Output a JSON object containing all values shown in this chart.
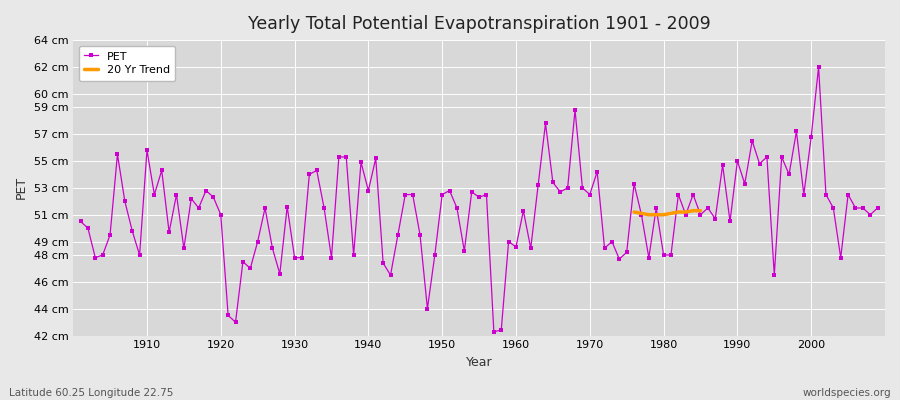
{
  "title": "Yearly Total Potential Evapotranspiration 1901 - 2009",
  "xlabel": "Year",
  "ylabel": "PET",
  "subtitle_left": "Latitude 60.25 Longitude 22.75",
  "subtitle_right": "worldspecies.org",
  "background_color": "#e8e8e8",
  "plot_bg_color": "#d8d8d8",
  "grid_color": "#ffffff",
  "pet_color": "#cc00cc",
  "trend_color": "#ff9900",
  "ylim_min": 42,
  "ylim_max": 64,
  "ytick_labels": [
    "42 cm",
    "44 cm",
    "46 cm",
    "48 cm",
    "49 cm",
    "51 cm",
    "53 cm",
    "55 cm",
    "57 cm",
    "59 cm",
    "60 cm",
    "62 cm",
    "64 cm"
  ],
  "ytick_values": [
    42,
    44,
    46,
    48,
    49,
    51,
    53,
    55,
    57,
    59,
    60,
    62,
    64
  ],
  "years": [
    1901,
    1902,
    1903,
    1904,
    1905,
    1906,
    1907,
    1908,
    1909,
    1910,
    1911,
    1912,
    1913,
    1914,
    1915,
    1916,
    1917,
    1918,
    1919,
    1920,
    1921,
    1922,
    1923,
    1924,
    1925,
    1926,
    1927,
    1928,
    1929,
    1930,
    1931,
    1932,
    1933,
    1934,
    1935,
    1936,
    1937,
    1938,
    1939,
    1940,
    1941,
    1942,
    1943,
    1944,
    1945,
    1946,
    1947,
    1948,
    1949,
    1950,
    1951,
    1952,
    1953,
    1954,
    1955,
    1956,
    1957,
    1958,
    1959,
    1960,
    1961,
    1962,
    1963,
    1964,
    1965,
    1966,
    1967,
    1968,
    1969,
    1970,
    1971,
    1972,
    1973,
    1974,
    1975,
    1976,
    1977,
    1978,
    1979,
    1980,
    1981,
    1982,
    1983,
    1984,
    1985,
    1986,
    1987,
    1988,
    1989,
    1990,
    1991,
    1992,
    1993,
    1994,
    1995,
    1996,
    1997,
    1998,
    1999,
    2000,
    2001,
    2002,
    2003,
    2004,
    2005,
    2006,
    2007,
    2008,
    2009
  ],
  "pet_values": [
    50.5,
    50.0,
    47.8,
    48.0,
    49.5,
    55.5,
    52.0,
    49.8,
    48.0,
    55.8,
    52.5,
    54.3,
    49.7,
    52.5,
    48.5,
    52.2,
    51.5,
    52.8,
    52.3,
    51.0,
    43.5,
    43.0,
    47.5,
    47.0,
    49.0,
    51.5,
    48.5,
    46.6,
    51.6,
    47.8,
    47.8,
    54.0,
    54.3,
    51.5,
    47.8,
    55.3,
    55.3,
    48.0,
    54.9,
    52.8,
    55.2,
    47.4,
    46.5,
    49.5,
    52.5,
    52.5,
    49.5,
    44.0,
    48.0,
    52.5,
    52.8,
    51.5,
    48.3,
    52.7,
    52.3,
    52.5,
    42.3,
    42.4,
    49.0,
    48.6,
    51.3,
    48.5,
    53.2,
    57.8,
    53.4,
    52.7,
    53.0,
    58.8,
    53.0,
    52.5,
    54.2,
    48.5,
    49.0,
    47.7,
    48.2,
    53.3,
    51.0,
    47.8,
    51.5,
    48.0,
    48.0,
    52.5,
    51.0,
    52.5,
    51.0,
    51.5,
    50.7,
    54.7,
    50.5,
    55.0,
    53.3,
    56.5,
    54.8,
    55.3,
    46.5,
    55.3,
    54.0,
    57.2,
    52.5,
    56.8,
    62.0,
    52.5,
    51.5,
    47.8,
    52.5,
    51.5,
    51.5,
    51.0,
    51.5
  ],
  "trend_years": [
    1976,
    1977,
    1978,
    1979,
    1980,
    1981,
    1982,
    1983,
    1984,
    1985
  ],
  "trend_values": [
    51.2,
    51.1,
    51.0,
    51.0,
    51.0,
    51.1,
    51.2,
    51.2,
    51.3,
    51.3
  ],
  "legend_loc": "upper left",
  "figsize": [
    9.0,
    4.0
  ],
  "dpi": 100
}
